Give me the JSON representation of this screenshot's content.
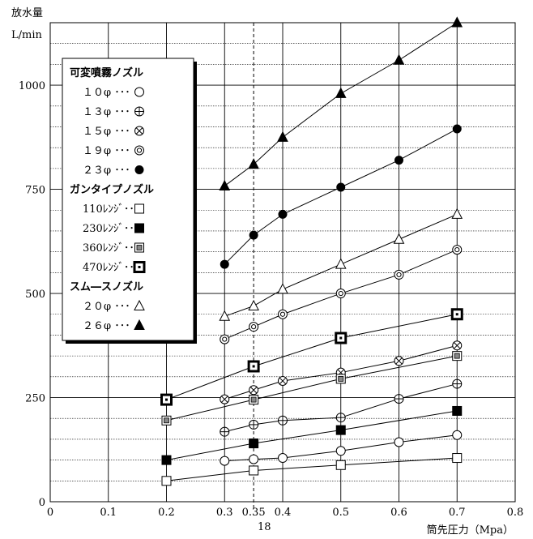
{
  "chart_data": {
    "type": "line",
    "ylabel_line1": "放水量",
    "ylabel_line2": "L/min",
    "xlabel": "筒先圧力（Mpa）",
    "xlim": [
      0,
      0.8
    ],
    "ylim": [
      0,
      1150
    ],
    "x_ticks": [
      "0",
      "0.1",
      "0.2",
      "0.3",
      "0.35",
      "0.4",
      "0.5",
      "0.6",
      "0.7",
      "0.8"
    ],
    "x_tick_values": [
      0,
      0.1,
      0.2,
      0.3,
      0.35,
      0.4,
      0.5,
      0.6,
      0.7,
      0.8
    ],
    "y_ticks": [
      "0",
      "250",
      "500",
      "750",
      "1000"
    ],
    "y_tick_values": [
      0,
      250,
      500,
      750,
      1000
    ],
    "minor_gridlines": true,
    "reference_line_x": 0.35,
    "reference_line_style": "dashed",
    "extra_mark_text": "18",
    "legend_position": "top-left",
    "legend_groups": [
      {
        "title": "可変噴霧ノズル",
        "items": [
          {
            "label": "１０φ ･･･",
            "marker": "circle-open"
          },
          {
            "label": "１３φ ･･･",
            "marker": "circle-plus"
          },
          {
            "label": "１５φ ･･･",
            "marker": "circle-x"
          },
          {
            "label": "１９φ ･･･",
            "marker": "circle-double"
          },
          {
            "label": "２３φ ･･･",
            "marker": "circle-filled"
          }
        ]
      },
      {
        "title": "ガンタイプノズル",
        "items": [
          {
            "label": "110ﾚﾝｼﾞ･･･",
            "marker": "square-open"
          },
          {
            "label": "230ﾚﾝｼﾞ･･･",
            "marker": "square-filled"
          },
          {
            "label": "360ﾚﾝｼﾞ･･･",
            "marker": "square-double"
          },
          {
            "label": "470ﾚﾝｼﾞ･･･",
            "marker": "square-bold"
          }
        ]
      },
      {
        "title": "スム―スノズル",
        "items": [
          {
            "label": "２０φ ･･･",
            "marker": "triangle-open"
          },
          {
            "label": "２６φ ･･･",
            "marker": "triangle-filled"
          }
        ]
      }
    ],
    "series": [
      {
        "marker": "circle-open",
        "x": [
          0.3,
          0.35,
          0.4,
          0.5,
          0.6,
          0.7
        ],
        "values": [
          98,
          102,
          105,
          122,
          143,
          160
        ]
      },
      {
        "marker": "circle-plus",
        "x": [
          0.3,
          0.35,
          0.4,
          0.5,
          0.6,
          0.7
        ],
        "values": [
          168,
          185,
          195,
          202,
          247,
          283
        ]
      },
      {
        "marker": "circle-x",
        "x": [
          0.3,
          0.35,
          0.4,
          0.5,
          0.6,
          0.7
        ],
        "values": [
          246,
          268,
          290,
          310,
          338,
          375
        ]
      },
      {
        "marker": "circle-double",
        "x": [
          0.3,
          0.35,
          0.4,
          0.5,
          0.6,
          0.7
        ],
        "values": [
          390,
          420,
          450,
          500,
          545,
          605
        ]
      },
      {
        "marker": "circle-filled",
        "x": [
          0.3,
          0.35,
          0.4,
          0.5,
          0.6,
          0.7
        ],
        "values": [
          570,
          640,
          690,
          755,
          820,
          895
        ]
      },
      {
        "marker": "square-open",
        "x": [
          0.2,
          0.35,
          0.5,
          0.7
        ],
        "values": [
          50,
          75,
          88,
          105
        ]
      },
      {
        "marker": "square-filled",
        "x": [
          0.2,
          0.35,
          0.5,
          0.7
        ],
        "values": [
          100,
          140,
          172,
          218
        ]
      },
      {
        "marker": "square-double",
        "x": [
          0.2,
          0.35,
          0.5,
          0.7
        ],
        "values": [
          195,
          245,
          295,
          350
        ]
      },
      {
        "marker": "square-bold",
        "x": [
          0.2,
          0.35,
          0.5,
          0.7
        ],
        "values": [
          245,
          325,
          393,
          450
        ]
      },
      {
        "marker": "triangle-open",
        "x": [
          0.3,
          0.35,
          0.4,
          0.5,
          0.6,
          0.7
        ],
        "values": [
          445,
          470,
          510,
          570,
          630,
          690
        ]
      },
      {
        "marker": "triangle-filled",
        "x": [
          0.3,
          0.35,
          0.4,
          0.5,
          0.6,
          0.7
        ],
        "values": [
          758,
          810,
          875,
          980,
          1060,
          1150
        ]
      }
    ]
  }
}
